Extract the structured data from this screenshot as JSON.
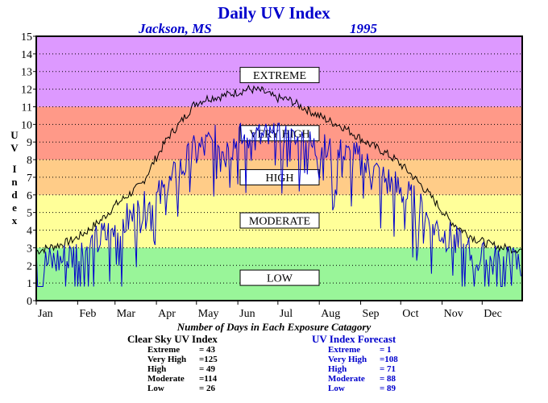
{
  "chart_data": {
    "type": "line",
    "title": "Daily UV Index",
    "location": "Jackson, MS",
    "year": "1995",
    "ylabel": "UV Index",
    "ylim": [
      0,
      15
    ],
    "yticks": [
      "0",
      "1",
      "2",
      "3",
      "4",
      "5",
      "6",
      "7",
      "8",
      "9",
      "10",
      "11",
      "12",
      "13",
      "14",
      "15"
    ],
    "xlim": [
      1,
      365
    ],
    "months": [
      {
        "label": "Jan",
        "day": 1
      },
      {
        "label": "Feb",
        "day": 32
      },
      {
        "label": "Mar",
        "day": 60
      },
      {
        "label": "Apr",
        "day": 91
      },
      {
        "label": "May",
        "day": 121
      },
      {
        "label": "Jun",
        "day": 152
      },
      {
        "label": "Jul",
        "day": 182
      },
      {
        "label": "Aug",
        "day": 213
      },
      {
        "label": "Sep",
        "day": 244
      },
      {
        "label": "Oct",
        "day": 274
      },
      {
        "label": "Nov",
        "day": 305
      },
      {
        "label": "Dec",
        "day": 335
      }
    ],
    "bands": [
      {
        "label": "LOW",
        "min": 0,
        "max": 3,
        "color": "#99f599"
      },
      {
        "label": "MODERATE",
        "min": 3,
        "max": 6,
        "color": "#ffff99"
      },
      {
        "label": "HIGH",
        "min": 6,
        "max": 8,
        "color": "#ffcc88"
      },
      {
        "label": "VERY HIGH",
        "min": 8,
        "max": 11,
        "color": "#ff9988"
      },
      {
        "label": "EXTREME",
        "min": 11,
        "max": 15,
        "color": "#dd99ff"
      }
    ],
    "series": [
      {
        "name": "Clear Sky UV Index",
        "color": "#000000",
        "x": [
          1,
          10,
          20,
          30,
          40,
          50,
          60,
          70,
          80,
          90,
          100,
          110,
          120,
          130,
          140,
          150,
          160,
          170,
          180,
          190,
          200,
          210,
          220,
          230,
          240,
          250,
          260,
          270,
          280,
          290,
          300,
          310,
          320,
          330,
          340,
          350,
          365
        ],
        "y": [
          2.8,
          3.0,
          3.2,
          3.5,
          4.0,
          4.6,
          5.4,
          6.0,
          6.6,
          8.0,
          9.3,
          10.2,
          11.2,
          11.5,
          11.6,
          11.8,
          12.0,
          11.9,
          11.5,
          11.4,
          11.0,
          10.6,
          10.2,
          9.9,
          9.4,
          8.9,
          8.5,
          8.0,
          7.3,
          6.5,
          5.6,
          4.6,
          4.0,
          3.5,
          3.2,
          3.0,
          2.9
        ]
      },
      {
        "name": "UV Index Forecast",
        "color": "#0000cc",
        "x": [
          1,
          10,
          20,
          30,
          40,
          50,
          60,
          70,
          80,
          90,
          100,
          110,
          120,
          130,
          140,
          150,
          160,
          170,
          180,
          190,
          200,
          210,
          220,
          230,
          240,
          250,
          260,
          270,
          280,
          290,
          300,
          310,
          320,
          330,
          340,
          350,
          365
        ],
        "y": [
          2.0,
          2.1,
          2.3,
          2.6,
          3.0,
          3.5,
          4.0,
          4.6,
          5.0,
          5.6,
          6.4,
          7.5,
          8.4,
          8.8,
          9.0,
          9.0,
          9.2,
          9.2,
          9.0,
          9.0,
          8.9,
          8.6,
          8.4,
          8.2,
          8.0,
          7.5,
          7.0,
          6.4,
          5.8,
          5.0,
          4.2,
          3.5,
          2.9,
          2.4,
          2.2,
          2.1,
          2.0
        ]
      }
    ],
    "stats_title": "Number of Days in Each Exposure Catagory",
    "stats": [
      {
        "name": "Clear Sky UV Index",
        "rows": [
          {
            "label": "Extreme",
            "value": "= 43"
          },
          {
            "label": "Very High",
            "value": "=125"
          },
          {
            "label": "High",
            "value": "= 49"
          },
          {
            "label": "Moderate",
            "value": "=114"
          },
          {
            "label": "Low",
            "value": "= 26"
          }
        ]
      },
      {
        "name": "UV Index Forecast",
        "rows": [
          {
            "label": "Extreme",
            "value": "= 1"
          },
          {
            "label": "Very High",
            "value": "=108"
          },
          {
            "label": "High",
            "value": "= 71"
          },
          {
            "label": "Moderate",
            "value": "= 88"
          },
          {
            "label": "Low",
            "value": "= 89"
          }
        ]
      }
    ]
  }
}
